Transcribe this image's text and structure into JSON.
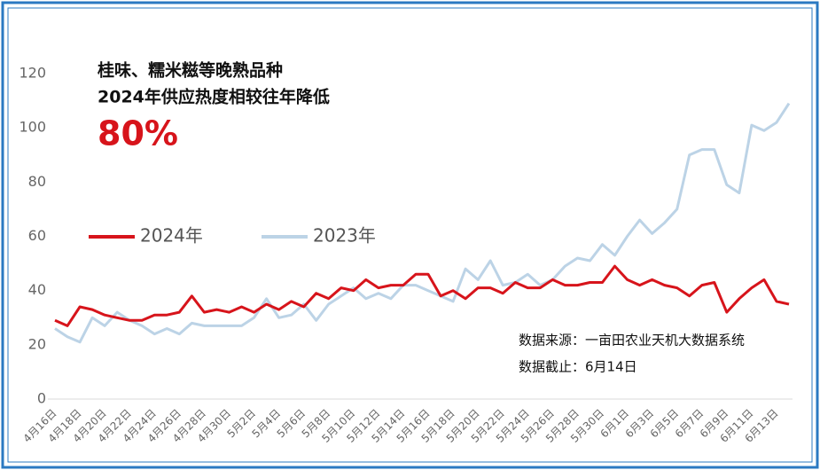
{
  "chart_data": {
    "type": "line",
    "title": [
      "桂味、糯米糍等晚熟品种",
      "2024年供应热度相较往年降低"
    ],
    "highlight": "80%",
    "notes": [
      "数据来源：一亩田农业天机大数据系统",
      "数据截止：6月14日"
    ],
    "categories": [
      "4月16日",
      null,
      "4月18日",
      null,
      "4月20日",
      null,
      "4月22日",
      null,
      "4月24日",
      null,
      "4月26日",
      null,
      "4月28日",
      null,
      "4月30日",
      null,
      "5月2日",
      null,
      "5月4日",
      null,
      "5月6日",
      null,
      "5月8日",
      null,
      "5月10日",
      null,
      "5月12日",
      null,
      "5月14日",
      null,
      "5月16日",
      null,
      "5月18日",
      null,
      "5月20日",
      null,
      "5月22日",
      null,
      "5月24日",
      null,
      "5月26日",
      null,
      "5月28日",
      null,
      "5月30日",
      null,
      "6月1日",
      null,
      "6月3日",
      null,
      "6月5日",
      null,
      "6月7日",
      null,
      "6月9日",
      null,
      "6月11日",
      null,
      "6月13日",
      null
    ],
    "series": [
      {
        "name": "2024年",
        "color": "#d7141b",
        "values": [
          29,
          27,
          34,
          33,
          31,
          30,
          29,
          29,
          31,
          31,
          32,
          38,
          32,
          33,
          32,
          34,
          32,
          35,
          33,
          36,
          34,
          39,
          37,
          41,
          40,
          44,
          41,
          42,
          42,
          46,
          46,
          38,
          40,
          37,
          41,
          41,
          39,
          43,
          41,
          41,
          44,
          42,
          42,
          43,
          43,
          49,
          44,
          42,
          44,
          42,
          41,
          38,
          42,
          43,
          32,
          37,
          41,
          44,
          36,
          35
        ]
      },
      {
        "name": "2023年",
        "color": "#bcd3e6",
        "values": [
          26,
          23,
          21,
          30,
          27,
          32,
          29,
          27,
          24,
          26,
          24,
          28,
          27,
          27,
          27,
          27,
          30,
          37,
          30,
          31,
          35,
          29,
          35,
          38,
          41,
          37,
          39,
          37,
          42,
          42,
          40,
          38,
          36,
          48,
          44,
          51,
          42,
          43,
          46,
          42,
          44,
          49,
          52,
          51,
          57,
          53,
          60,
          66,
          61,
          65,
          70,
          90,
          92,
          92,
          79,
          76,
          101,
          99,
          102,
          109
        ]
      }
    ],
    "ylim": [
      0,
      120
    ],
    "yticks": [
      0,
      20,
      40,
      60,
      80,
      100,
      120
    ]
  }
}
